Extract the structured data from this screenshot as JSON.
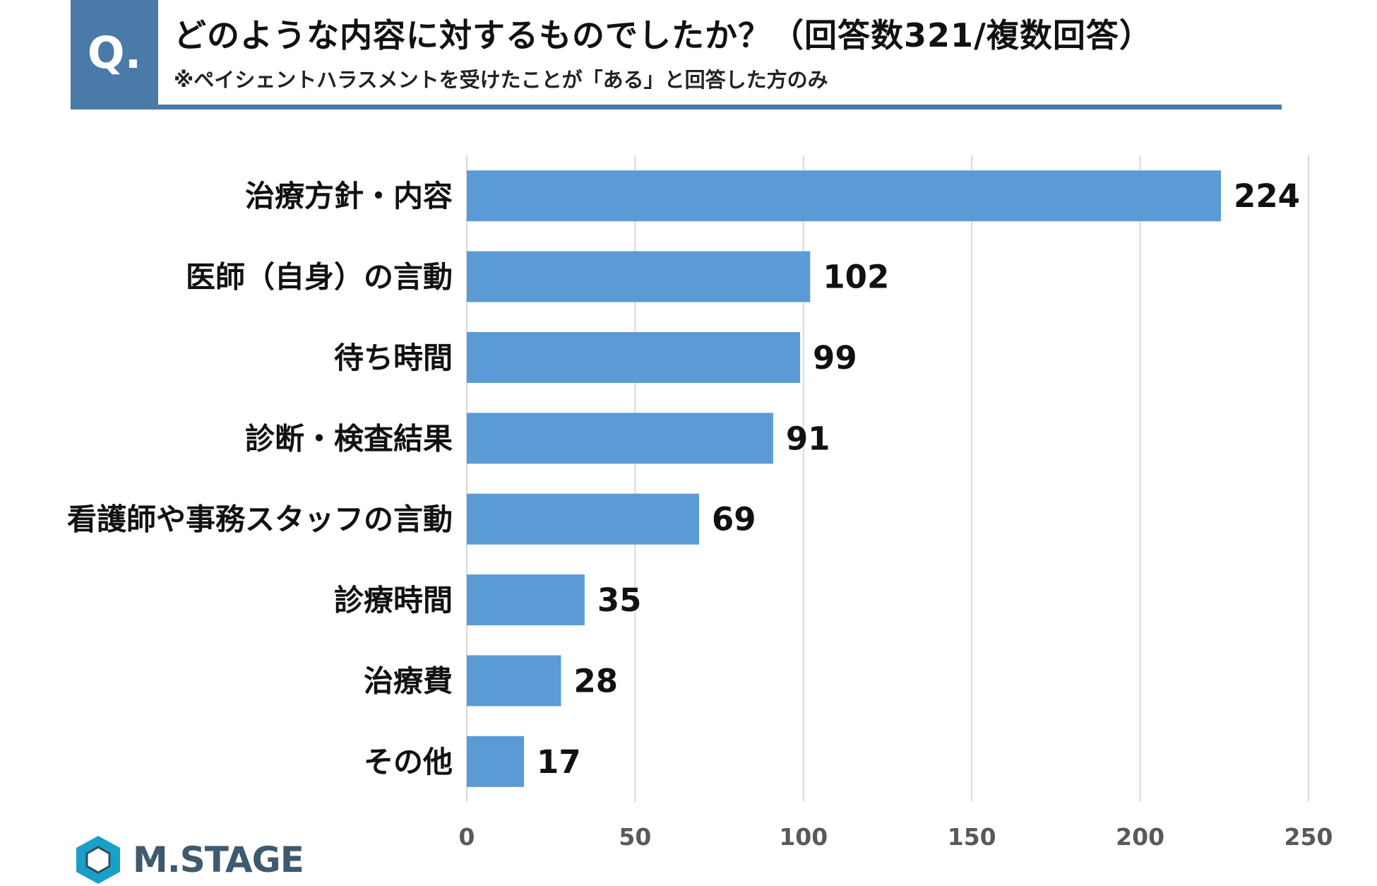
{
  "header": {
    "q_label": "Q.",
    "title": "どのような内容に対するものでしたか？（回答数321/複数回答）",
    "subtitle": "※ペイシェントハラスメントを受けたことが「ある」と回答した方のみ"
  },
  "colors": {
    "header_accent": "#4a7aa8",
    "bar": "#5b9bd5",
    "grid": "#d9d9d9",
    "axis_text": "#595959",
    "label_text": "#111111",
    "logo_dark": "#2f4b5c",
    "logo_teal": "#1aa0c8"
  },
  "chart_data": {
    "type": "bar",
    "orientation": "horizontal",
    "title": "",
    "xlabel": "",
    "ylabel": "",
    "xlim": [
      0,
      250
    ],
    "xticks": [
      0,
      50,
      100,
      150,
      200,
      250
    ],
    "grid": true,
    "categories": [
      "治療方針・内容",
      "医師（自身）の言動",
      "待ち時間",
      "診断・検査結果",
      "看護師や事務スタッフの言動",
      "診療時間",
      "治療費",
      "その他"
    ],
    "values": [
      224,
      102,
      99,
      91,
      69,
      35,
      28,
      17
    ]
  },
  "logo": {
    "text": "M.STAGE"
  }
}
